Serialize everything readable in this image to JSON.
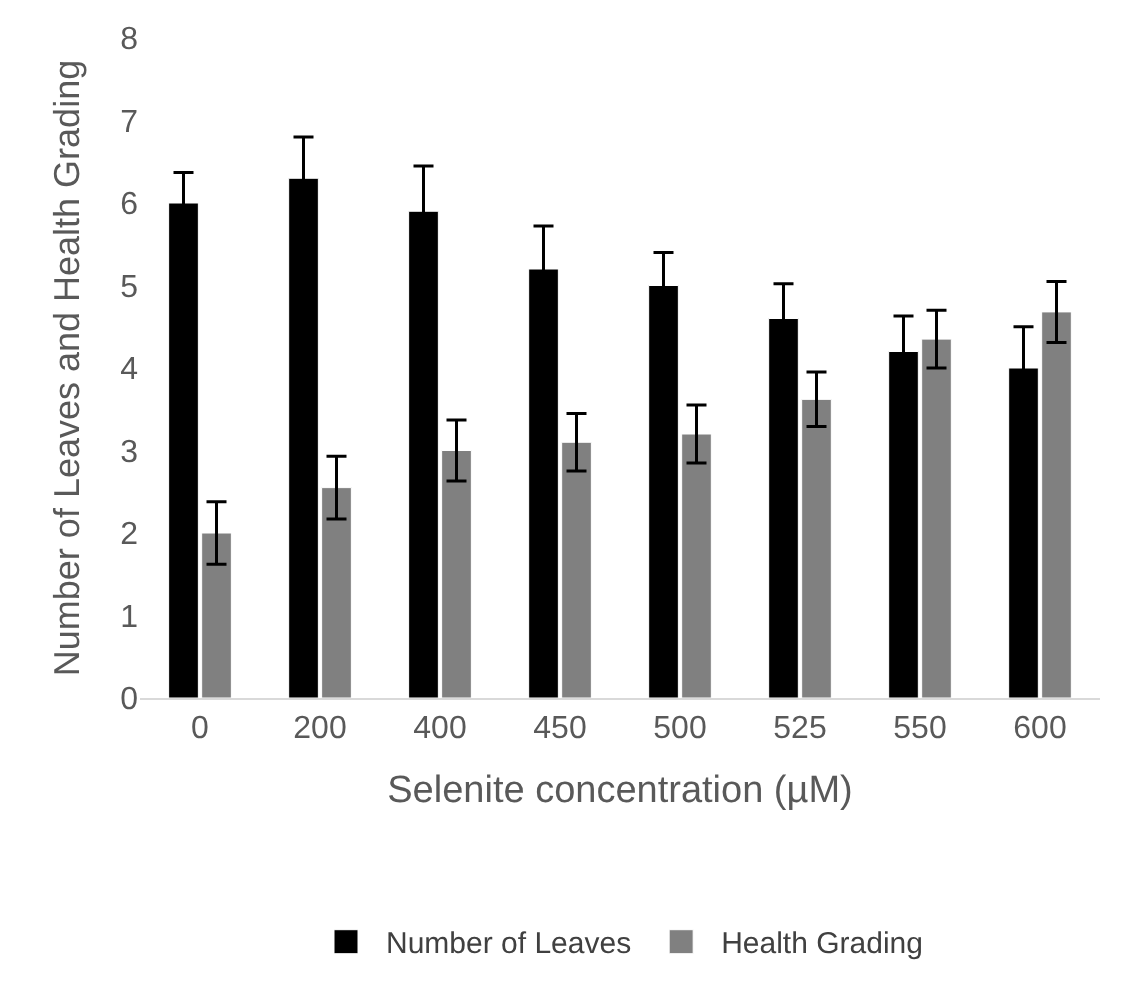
{
  "chart_data": {
    "type": "bar",
    "xlabel": "Selenite concentration (µM)",
    "ylabel": "Number of Leaves and Health Grading",
    "categories": [
      "0",
      "200",
      "400",
      "450",
      "500",
      "525",
      "550",
      "600"
    ],
    "series": [
      {
        "name": "Number of Leaves",
        "color": "#000000",
        "values": [
          6.0,
          6.3,
          5.9,
          5.2,
          5.0,
          4.6,
          4.2,
          4.0
        ],
        "errors": [
          0.37,
          0.5,
          0.55,
          0.52,
          0.4,
          0.42,
          0.43,
          0.5
        ]
      },
      {
        "name": "Health Grading",
        "color": "#808080",
        "values": [
          2.0,
          2.55,
          3.0,
          3.1,
          3.2,
          3.62,
          4.35,
          4.68
        ],
        "errors": [
          0.38,
          0.38,
          0.37,
          0.35,
          0.35,
          0.33,
          0.35,
          0.37
        ]
      }
    ],
    "ylim": [
      0,
      8
    ],
    "yticks": [
      0,
      1,
      2,
      3,
      4,
      5,
      6,
      7,
      8
    ],
    "grid": false,
    "legend": "bottom"
  }
}
